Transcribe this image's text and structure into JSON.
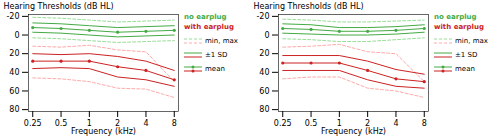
{
  "chart_data": [
    {
      "type": "line",
      "xlabel": "Frequency (kHz)",
      "ylabel": "Hearing Thresholds (dB HL)",
      "log": "x",
      "x": [
        0.25,
        0.5,
        1,
        2,
        4,
        8
      ],
      "xlim": [
        0.2253,
        8.8766
      ],
      "xticks": [
        0.25,
        0.5,
        1,
        2,
        4,
        8
      ],
      "ylim": [
        82,
        -22
      ],
      "yticks": [
        -20,
        0,
        20,
        40,
        60,
        80
      ],
      "grid": false,
      "legend_labels": {
        "min_max": "min, max",
        "sd": "±1 SD",
        "mean": "mean"
      },
      "series": [
        {
          "name": "no earplug",
          "color": "#44aa44",
          "range_color": "#99dd99",
          "values": [
            -8,
            -7,
            -5,
            -3,
            -4,
            -5
          ],
          "sd_lo": [
            -13,
            -12,
            -10,
            -8,
            -9,
            -10
          ],
          "sd_hi": [
            -3,
            -2,
            0,
            2,
            1,
            0
          ],
          "min": [
            -19,
            -18,
            -16,
            -14,
            -15,
            -16
          ],
          "max": [
            3,
            4,
            6,
            8,
            7,
            6
          ]
        },
        {
          "name": "with earplug",
          "color": "#cc2222",
          "range_color": "#ffaaaa",
          "values": [
            28,
            28,
            28,
            34,
            38,
            48
          ],
          "sd_lo": [
            20,
            21,
            20,
            23,
            28,
            38
          ],
          "sd_hi": [
            36,
            35,
            36,
            45,
            48,
            55
          ],
          "min": [
            12,
            13,
            11,
            16,
            18,
            50
          ],
          "max": [
            46,
            47,
            50,
            57,
            58,
            67
          ]
        }
      ]
    },
    {
      "type": "line",
      "xlabel": "Frequency (kHz)",
      "ylabel": "Hearing Thresholds (dB HL)",
      "log": "x",
      "x": [
        0.25,
        0.5,
        1,
        2,
        4,
        8
      ],
      "xlim": [
        0.2253,
        8.8766
      ],
      "xticks": [
        0.25,
        0.5,
        1,
        2,
        4,
        8
      ],
      "ylim": [
        82,
        -22
      ],
      "yticks": [
        -20,
        0,
        20,
        40,
        60,
        80
      ],
      "grid": false,
      "legend_labels": {
        "min_max": "min, max",
        "sd": "±1 SD",
        "mean": "mean"
      },
      "series": [
        {
          "name": "no earplug",
          "color": "#44aa44",
          "range_color": "#99dd99",
          "values": [
            -7,
            -6,
            -4,
            -4,
            -5,
            -7
          ],
          "sd_lo": [
            -12,
            -11,
            -8,
            -8,
            -9,
            -11
          ],
          "sd_hi": [
            -2,
            -1,
            0,
            0,
            -1,
            -3
          ],
          "min": [
            -17,
            -16,
            -14,
            -14,
            -15,
            -16
          ],
          "max": [
            4,
            5,
            7,
            7,
            5,
            3
          ]
        },
        {
          "name": "with earplug",
          "color": "#cc2222",
          "range_color": "#ffaaaa",
          "values": [
            30,
            30,
            30,
            38,
            47,
            50
          ],
          "sd_lo": [
            22,
            22,
            22,
            28,
            37,
            42
          ],
          "sd_hi": [
            38,
            38,
            38,
            48,
            55,
            57
          ],
          "min": [
            13,
            12,
            10,
            18,
            20,
            50
          ],
          "max": [
            47,
            45,
            45,
            57,
            60,
            67
          ]
        }
      ]
    }
  ]
}
